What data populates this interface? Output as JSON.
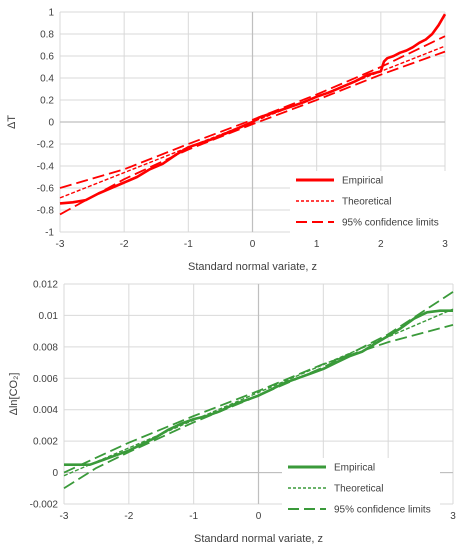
{
  "chart_data": [
    {
      "type": "line",
      "color": "#ff0000",
      "xlabel": "Standard normal variate, z",
      "ylabel": "ΔT",
      "xlim": [
        -3,
        3
      ],
      "ylim": [
        -1,
        1
      ],
      "x_ticks": [
        "-3",
        "-2",
        "-1",
        "0",
        "1",
        "2",
        "3"
      ],
      "y_ticks": [
        "-1",
        "-0.8",
        "-0.6",
        "-0.4",
        "-0.2",
        "0",
        "0.2",
        "0.4",
        "0.6",
        "0.8",
        "1"
      ],
      "grid": true,
      "legend_position": "bottom-right",
      "series": [
        {
          "name": "Empirical",
          "style": "solid",
          "x": [
            -3,
            -2.8,
            -2.6,
            -2.4,
            -2.2,
            -2.0,
            -1.8,
            -1.6,
            -1.4,
            -1.2,
            -1.0,
            -0.8,
            -0.6,
            -0.4,
            -0.2,
            0,
            0.05,
            0.1,
            0.2,
            0.4,
            0.6,
            0.8,
            1.0,
            1.2,
            1.4,
            1.6,
            1.8,
            2.0,
            2.05,
            2.1,
            2.2,
            2.3,
            2.4,
            2.5,
            2.6,
            2.7,
            2.8,
            2.9,
            3.0
          ],
          "y": [
            -0.74,
            -0.73,
            -0.71,
            -0.65,
            -0.6,
            -0.55,
            -0.5,
            -0.43,
            -0.38,
            -0.3,
            -0.23,
            -0.19,
            -0.15,
            -0.1,
            -0.05,
            0.0,
            0.02,
            0.04,
            0.06,
            0.1,
            0.14,
            0.18,
            0.23,
            0.27,
            0.32,
            0.37,
            0.43,
            0.46,
            0.55,
            0.58,
            0.6,
            0.63,
            0.65,
            0.68,
            0.72,
            0.75,
            0.8,
            0.88,
            0.98
          ]
        },
        {
          "name": "Theoretical",
          "style": "dotted",
          "x": [
            -3,
            3
          ],
          "y": [
            -0.69,
            0.69
          ]
        },
        {
          "name": "95% confidence limits",
          "style": "dashed",
          "x": [
            -3,
            -2,
            -1,
            0,
            1,
            2,
            3
          ],
          "y": [
            -0.6,
            -0.43,
            -0.2,
            0.02,
            0.25,
            0.5,
            0.78
          ]
        },
        {
          "name": "",
          "style": "dashed",
          "x": [
            -3,
            -2,
            -1,
            0,
            1,
            2,
            3
          ],
          "y": [
            -0.84,
            -0.52,
            -0.25,
            -0.02,
            0.2,
            0.43,
            0.64
          ]
        }
      ]
    },
    {
      "type": "line",
      "color": "#3a9a3a",
      "xlabel": "Standard normal variate, z",
      "ylabel": "Δln[CO₂]",
      "xlim": [
        -3,
        3
      ],
      "ylim": [
        -0.002,
        0.012
      ],
      "x_ticks": [
        "-3",
        "-2",
        "-1",
        "0",
        "1",
        "2",
        "3"
      ],
      "y_ticks": [
        "-0.002",
        "0",
        "0.002",
        "0.004",
        "0.006",
        "0.008",
        "0.01",
        "0.012"
      ],
      "grid": true,
      "legend_position": "bottom-right",
      "series": [
        {
          "name": "Empirical",
          "style": "solid",
          "x": [
            -3,
            -2.6,
            -2.4,
            -2.2,
            -2.0,
            -1.8,
            -1.6,
            -1.4,
            -1.2,
            -1.0,
            -0.8,
            -0.6,
            -0.4,
            -0.2,
            0,
            0.2,
            0.4,
            0.6,
            0.8,
            1.0,
            1.2,
            1.4,
            1.6,
            1.8,
            2.0,
            2.2,
            2.4,
            2.6,
            2.8,
            3.0
          ],
          "y": [
            0.0005,
            0.0005,
            0.0008,
            0.0011,
            0.0014,
            0.0018,
            0.0022,
            0.0027,
            0.0031,
            0.0034,
            0.0036,
            0.0039,
            0.0043,
            0.0046,
            0.0049,
            0.0053,
            0.0057,
            0.006,
            0.0063,
            0.0066,
            0.007,
            0.0074,
            0.0077,
            0.0082,
            0.0087,
            0.0092,
            0.0098,
            0.0102,
            0.0103,
            0.0103
          ]
        },
        {
          "name": "Theoretical",
          "style": "dotted",
          "x": [
            -3,
            3
          ],
          "y": [
            -0.0002,
            0.0104
          ]
        },
        {
          "name": "95% confidence limits",
          "style": "dashed",
          "x": [
            -3,
            -2,
            -1,
            0,
            1,
            2,
            3
          ],
          "y": [
            0.0,
            0.0019,
            0.0036,
            0.0052,
            0.0069,
            0.0083,
            0.0094
          ]
        },
        {
          "name": "",
          "style": "dashed",
          "x": [
            -3,
            -2.5,
            -2,
            -1,
            0,
            1,
            2,
            3
          ],
          "y": [
            -0.001,
            0.0003,
            0.0013,
            0.0032,
            0.0049,
            0.0067,
            0.0088,
            0.0115
          ]
        }
      ]
    }
  ]
}
